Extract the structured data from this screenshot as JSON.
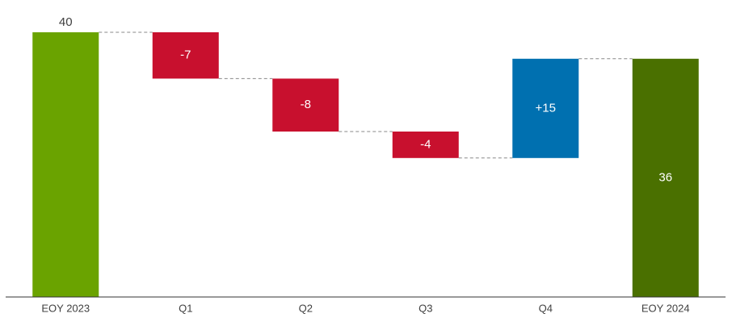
{
  "chart_data": {
    "type": "waterfall",
    "categories": [
      "EOY 2023",
      "Q1",
      "Q2",
      "Q3",
      "Q4",
      "EOY 2024"
    ],
    "values": [
      40,
      -7,
      -8,
      -4,
      15,
      36
    ],
    "value_labels": [
      "40",
      "-7",
      "-8",
      "-4",
      "+15",
      "36"
    ],
    "colors": [
      "#6aa300",
      "#c8102e",
      "#c8102e",
      "#c8102e",
      "#0070b0",
      "#4a7000"
    ]
  }
}
